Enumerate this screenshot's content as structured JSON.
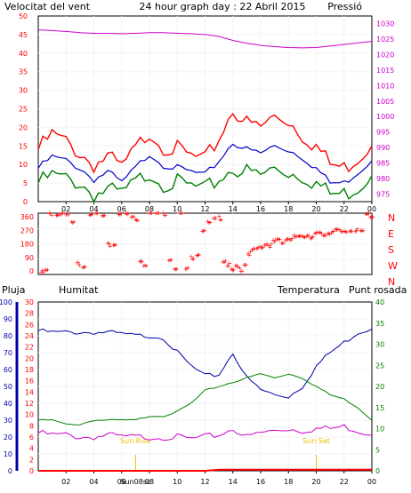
{
  "colors": {
    "wind": "#ff0000",
    "wind_avg": "#0000cc",
    "wind_low": "#008000",
    "pressure": "#cc00cc",
    "direction": "#ff0000",
    "rain": "#ff0000",
    "humidity": "#0000aa",
    "temperature": "#008000",
    "dewpoint": "#cc00cc",
    "sun": "#e6c200"
  },
  "chart_data": [
    {
      "type": "line",
      "title": "24 hour graph day : 22 Abril 2015",
      "left_label": "Velocitat del vent",
      "right_label": "Pressió",
      "x_ticks": [
        "02",
        "04",
        "06",
        "08",
        "10",
        "12",
        "14",
        "16",
        "18",
        "20",
        "22",
        "00"
      ],
      "left_ticks": [
        "0",
        "5",
        "10",
        "15",
        "20",
        "25",
        "30",
        "35",
        "40",
        "45",
        "50"
      ],
      "right_ticks": [
        "975",
        "980",
        "985",
        "990",
        "995",
        "1000",
        "1005",
        "1010",
        "1015",
        "1020",
        "1025",
        "1030"
      ],
      "ylim_left": [
        0,
        50
      ],
      "ylim_right": [
        972.5,
        1032.5
      ],
      "x": [
        0,
        1,
        2,
        3,
        4,
        5,
        6,
        7,
        8,
        9,
        10,
        11,
        12,
        13,
        14,
        15,
        16,
        17,
        18,
        19,
        20,
        21,
        22,
        23,
        24
      ],
      "series": [
        {
          "name": "Velocitat del vent",
          "key": "wind",
          "values": [
            14,
            18,
            16,
            13,
            10,
            12,
            9,
            14,
            19,
            15,
            14,
            12,
            11,
            17,
            25,
            21,
            20,
            23,
            22,
            18,
            15,
            10,
            9,
            12,
            15
          ]
        },
        {
          "name": "",
          "key": "wind_avg",
          "values": [
            9,
            12,
            11,
            9,
            6,
            8,
            5,
            9,
            13,
            10,
            9,
            8,
            7,
            11,
            16,
            14,
            13,
            15,
            14,
            12,
            9,
            5,
            5,
            8,
            11
          ]
        },
        {
          "name": "",
          "key": "wind_low",
          "values": [
            5,
            7,
            6,
            5,
            2,
            3,
            2,
            5,
            8,
            5,
            5,
            4,
            3,
            6,
            9,
            8,
            7,
            9,
            8,
            7,
            5,
            2,
            2,
            4,
            7
          ]
        },
        {
          "name": "Pressió",
          "key": "pressure",
          "axis": "right",
          "values": [
            1028,
            1027.8,
            1027.5,
            1027.1,
            1026.9,
            1026.9,
            1026.8,
            1026.9,
            1027.1,
            1027.1,
            1026.9,
            1026.8,
            1026.5,
            1025.9,
            1024.6,
            1023.7,
            1023.0,
            1022.6,
            1022.3,
            1022.2,
            1022.3,
            1022.8,
            1023.3,
            1023.8,
            1024.3
          ]
        }
      ]
    },
    {
      "type": "scatter",
      "left_ticks": [
        "0",
        "90",
        "180",
        "270",
        "360"
      ],
      "right_ticks": [
        "N",
        "W",
        "S",
        "E",
        "N"
      ],
      "ylim": [
        0,
        360
      ],
      "series": [
        {
          "name": "",
          "key": "direction",
          "x": [
            0.2,
            0.5,
            0.8,
            1.3,
            1.6,
            2.0,
            2.4,
            2.8,
            3.2,
            3.7,
            4.1,
            4.6,
            5.0,
            5.4,
            5.8,
            6.3,
            6.7,
            7.0,
            7.3,
            7.6,
            8.0,
            8.5,
            9.0,
            9.4,
            9.8,
            10.2,
            10.6,
            11.0,
            11.4,
            11.8,
            12.2,
            12.6,
            13.0,
            13.3,
            13.6,
            13.9,
            14.2,
            14.5,
            14.8,
            15.1,
            15.4,
            15.7,
            16.0,
            16.3,
            16.6,
            16.9,
            17.2,
            17.5,
            17.8,
            18.1,
            18.4,
            18.7,
            19.0,
            19.3,
            19.6,
            19.9,
            20.2,
            20.5,
            20.8,
            21.1,
            21.4,
            21.7,
            22.0,
            22.4,
            22.8,
            23.2,
            23.6,
            23.9
          ],
          "y": [
            10,
            20,
            355,
            350,
            360,
            345,
            300,
            60,
            50,
            360,
            355,
            340,
            170,
            175,
            360,
            350,
            335,
            320,
            80,
            60,
            360,
            358,
            355,
            90,
            40,
            360,
            30,
            100,
            120,
            260,
            300,
            320,
            330,
            80,
            60,
            20,
            40,
            30,
            60,
            120,
            140,
            150,
            160,
            180,
            170,
            190,
            200,
            185,
            210,
            205,
            220,
            215,
            225,
            230,
            220,
            235,
            240,
            230,
            245,
            250,
            255,
            250,
            255,
            260,
            255,
            250,
            350,
            345
          ]
        }
      ]
    },
    {
      "type": "line",
      "labels": {
        "rain": "Pluja",
        "humidity": "Humitat",
        "temperature": "Temperatura",
        "dewpoint": "Punt rosada"
      },
      "x_ticks": [
        "02",
        "04",
        "06",
        "08",
        "10",
        "12",
        "14",
        "16",
        "18",
        "20",
        "22",
        "00"
      ],
      "hum_ticks": [
        "0",
        "10",
        "20",
        "30",
        "40",
        "50",
        "60",
        "70",
        "80",
        "90",
        "100"
      ],
      "rain_ticks": [
        "0",
        "2",
        "4",
        "6",
        "8",
        "10",
        "12",
        "14",
        "16",
        "18",
        "20",
        "22",
        "24",
        "26",
        "28",
        "30"
      ],
      "temp_ticks": [
        "0",
        "5",
        "10",
        "15",
        "20",
        "25",
        "30",
        "35",
        "40"
      ],
      "ylim_humidity": [
        0,
        100
      ],
      "ylim_rain": [
        0,
        30
      ],
      "ylim_temperature": [
        0,
        40
      ],
      "x": [
        0,
        1,
        2,
        3,
        4,
        5,
        6,
        7,
        8,
        9,
        10,
        11,
        12,
        13,
        14,
        15,
        16,
        17,
        18,
        19,
        20,
        21,
        22,
        23,
        24
      ],
      "series": [
        {
          "name": "Humitat",
          "key": "humidity",
          "values": [
            83,
            82,
            82,
            82,
            82,
            82,
            81,
            80,
            80,
            79,
            70,
            62,
            56,
            57,
            70,
            55,
            48,
            45,
            44,
            50,
            62,
            70,
            76,
            82,
            84
          ]
        },
        {
          "name": "Temperatura",
          "key": "temperature",
          "values": [
            12,
            12,
            11,
            11,
            12,
            12,
            12,
            12,
            13,
            13,
            14,
            16,
            19,
            20,
            21,
            22,
            23,
            22,
            23,
            22,
            20,
            18,
            17,
            15,
            12
          ]
        },
        {
          "name": "Punt rosada",
          "key": "dewpoint",
          "values": [
            9,
            8.5,
            8.5,
            8,
            8,
            8.5,
            8,
            8,
            8,
            8,
            8,
            7.5,
            8,
            8.5,
            10,
            8,
            9,
            9.5,
            10,
            9.5,
            10,
            10,
            10.5,
            9.5,
            8.5
          ]
        },
        {
          "name": "Pluja",
          "key": "rain",
          "values": [
            0,
            0,
            0,
            0,
            0,
            0,
            0,
            0,
            0,
            0,
            0,
            0,
            0,
            0.2,
            0.2,
            0.2,
            0.2,
            0.2,
            0.2,
            0.2,
            0.2,
            0.2,
            0.2,
            0.2,
            0.2
          ]
        }
      ],
      "sun": {
        "rise_label": "Sun Rise",
        "set_label": "Sun Set",
        "rise_time": 7.0,
        "set_time": 20.0,
        "bottom_label": "Sun08sc"
      }
    }
  ]
}
